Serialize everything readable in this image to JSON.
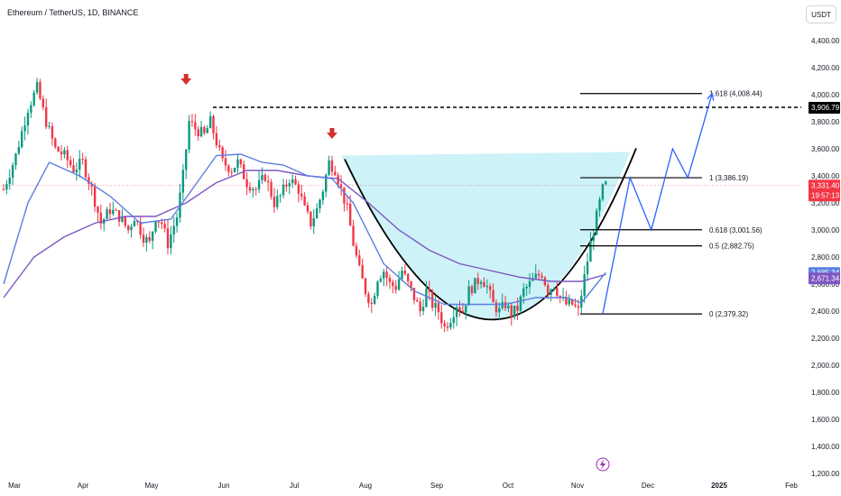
{
  "header": {
    "symbol_title": "Ethereum / TetherUS, 1D, BINANCE",
    "currency_label": "USDT"
  },
  "colors": {
    "up": "#089981",
    "down": "#f23645",
    "ma_fast": "#5b7fe0",
    "ma_slow": "#7e57c2",
    "cup_fill": "#b2ebf2",
    "projection": "#2962ff",
    "arrow_marker": "#d32f2f"
  },
  "chart_data": {
    "type": "candlestick",
    "x_labels": [
      "Mar",
      "Apr",
      "May",
      "Jun",
      "Jul",
      "Aug",
      "Sep",
      "Oct",
      "Nov",
      "Dec",
      "2025",
      "Feb"
    ],
    "y_ticks": [
      1200,
      1400,
      1600,
      1800,
      2000,
      2200,
      2400,
      2600,
      2800,
      3000,
      3200,
      3400,
      3600,
      3800,
      4000,
      4200,
      4400
    ],
    "y_tick_labels": [
      "1,200.00",
      "1,400.00",
      "1,600.00",
      "1,800.00",
      "2,000.00",
      "2,200.00",
      "2,400.00",
      "2,600.00",
      "2,800.00",
      "3,000.00",
      "3,200.00",
      "3,400.00",
      "3,600.00",
      "3,800.00",
      "4,000.00",
      "4,200.00",
      "4,400.00"
    ],
    "ylim": [
      1200,
      4580
    ],
    "price_path": [
      [
        0,
        3300
      ],
      [
        4,
        3550
      ],
      [
        8,
        3900
      ],
      [
        11,
        4050
      ],
      [
        14,
        3800
      ],
      [
        17,
        3600
      ],
      [
        20,
        3550
      ],
      [
        23,
        3450
      ],
      [
        26,
        3500
      ],
      [
        29,
        3300
      ],
      [
        32,
        3050
      ],
      [
        35,
        3150
      ],
      [
        38,
        3100
      ],
      [
        41,
        3000
      ],
      [
        43,
        3100
      ],
      [
        46,
        2950
      ],
      [
        48,
        2900
      ],
      [
        50,
        3100
      ],
      [
        52,
        3050
      ],
      [
        54,
        2900
      ],
      [
        57,
        3100
      ],
      [
        59,
        3400
      ],
      [
        61,
        3800
      ],
      [
        63,
        3750
      ],
      [
        66,
        3700
      ],
      [
        68,
        3800
      ],
      [
        70,
        3650
      ],
      [
        72,
        3500
      ],
      [
        75,
        3450
      ],
      [
        77,
        3500
      ],
      [
        80,
        3350
      ],
      [
        83,
        3300
      ],
      [
        86,
        3400
      ],
      [
        89,
        3200
      ],
      [
        91,
        3250
      ],
      [
        94,
        3380
      ],
      [
        97,
        3300
      ],
      [
        99,
        3150
      ],
      [
        101,
        3050
      ],
      [
        103,
        3150
      ],
      [
        105,
        3300
      ],
      [
        107,
        3500
      ],
      [
        109,
        3450
      ],
      [
        111,
        3300
      ],
      [
        113,
        3150
      ],
      [
        115,
        2900
      ],
      [
        117,
        2700
      ],
      [
        119,
        2550
      ],
      [
        121,
        2450
      ],
      [
        123,
        2650
      ],
      [
        125,
        2700
      ],
      [
        127,
        2600
      ],
      [
        129,
        2580
      ],
      [
        131,
        2700
      ],
      [
        133,
        2600
      ],
      [
        135,
        2500
      ],
      [
        137,
        2400
      ],
      [
        139,
        2550
      ],
      [
        141,
        2450
      ],
      [
        143,
        2400
      ],
      [
        145,
        2280
      ],
      [
        147,
        2350
      ],
      [
        149,
        2450
      ],
      [
        151,
        2400
      ],
      [
        153,
        2550
      ],
      [
        155,
        2600
      ],
      [
        157,
        2650
      ],
      [
        159,
        2580
      ],
      [
        161,
        2450
      ],
      [
        163,
        2400
      ],
      [
        165,
        2450
      ],
      [
        167,
        2380
      ],
      [
        169,
        2420
      ],
      [
        171,
        2550
      ],
      [
        173,
        2600
      ],
      [
        175,
        2650
      ],
      [
        177,
        2680
      ],
      [
        179,
        2550
      ],
      [
        181,
        2600
      ],
      [
        183,
        2500
      ],
      [
        185,
        2450
      ],
      [
        187,
        2450
      ],
      [
        189,
        2400
      ],
      [
        191,
        2650
      ],
      [
        193,
        2900
      ],
      [
        195,
        3100
      ],
      [
        197,
        3300
      ],
      [
        198,
        3331
      ]
    ],
    "ma_fast_path": [
      [
        0,
        2600
      ],
      [
        8,
        3200
      ],
      [
        15,
        3500
      ],
      [
        25,
        3400
      ],
      [
        35,
        3250
      ],
      [
        45,
        3050
      ],
      [
        55,
        3080
      ],
      [
        62,
        3300
      ],
      [
        70,
        3550
      ],
      [
        78,
        3560
      ],
      [
        85,
        3500
      ],
      [
        92,
        3480
      ],
      [
        100,
        3400
      ],
      [
        108,
        3380
      ],
      [
        115,
        3200
      ],
      [
        125,
        2750
      ],
      [
        135,
        2550
      ],
      [
        145,
        2450
      ],
      [
        155,
        2450
      ],
      [
        165,
        2450
      ],
      [
        175,
        2500
      ],
      [
        185,
        2500
      ],
      [
        190,
        2460
      ],
      [
        195,
        2600
      ],
      [
        198,
        2685
      ]
    ],
    "ma_slow_path": [
      [
        0,
        2500
      ],
      [
        10,
        2800
      ],
      [
        20,
        2950
      ],
      [
        30,
        3050
      ],
      [
        40,
        3100
      ],
      [
        50,
        3100
      ],
      [
        60,
        3200
      ],
      [
        70,
        3350
      ],
      [
        80,
        3440
      ],
      [
        90,
        3440
      ],
      [
        100,
        3400
      ],
      [
        110,
        3380
      ],
      [
        120,
        3200
      ],
      [
        130,
        3000
      ],
      [
        140,
        2850
      ],
      [
        150,
        2750
      ],
      [
        160,
        2700
      ],
      [
        170,
        2650
      ],
      [
        180,
        2620
      ],
      [
        190,
        2620
      ],
      [
        198,
        2671
      ]
    ],
    "fib_levels": [
      {
        "label": "1.618 (4,008.44)",
        "value": 4008.44
      },
      {
        "label": "1 (3,386.19)",
        "value": 3386.19
      },
      {
        "label": "0.618 (3,001.56)",
        "value": 3001.56
      },
      {
        "label": "0.5 (2,882.75)",
        "value": 2882.75
      },
      {
        "label": "0 (2,379.32)",
        "value": 2379.32
      }
    ],
    "resistance": {
      "value": 3906.79,
      "label": "3,906.79"
    },
    "current_price": {
      "value": 3331.4,
      "label": "3,331.40",
      "countdown": "19:57:13"
    },
    "ma_fast_value": {
      "value": 2685.34,
      "label": "2,685.34"
    },
    "ma_slow_value": {
      "value": 2671.34,
      "label": "2,671.34"
    },
    "cup": {
      "left_day": 111,
      "right_day": 206,
      "rim_value": 3550,
      "bottom_day": 163,
      "bottom_value": 2300
    },
    "projection_path": [
      [
        197,
        2379
      ],
      [
        206,
        3386
      ],
      [
        213,
        3001
      ],
      [
        220,
        3600
      ],
      [
        225,
        3386
      ],
      [
        233,
        4008
      ]
    ],
    "down_arrows": [
      {
        "day": 60,
        "value": 4100
      },
      {
        "day": 108,
        "value": 3700
      }
    ]
  }
}
